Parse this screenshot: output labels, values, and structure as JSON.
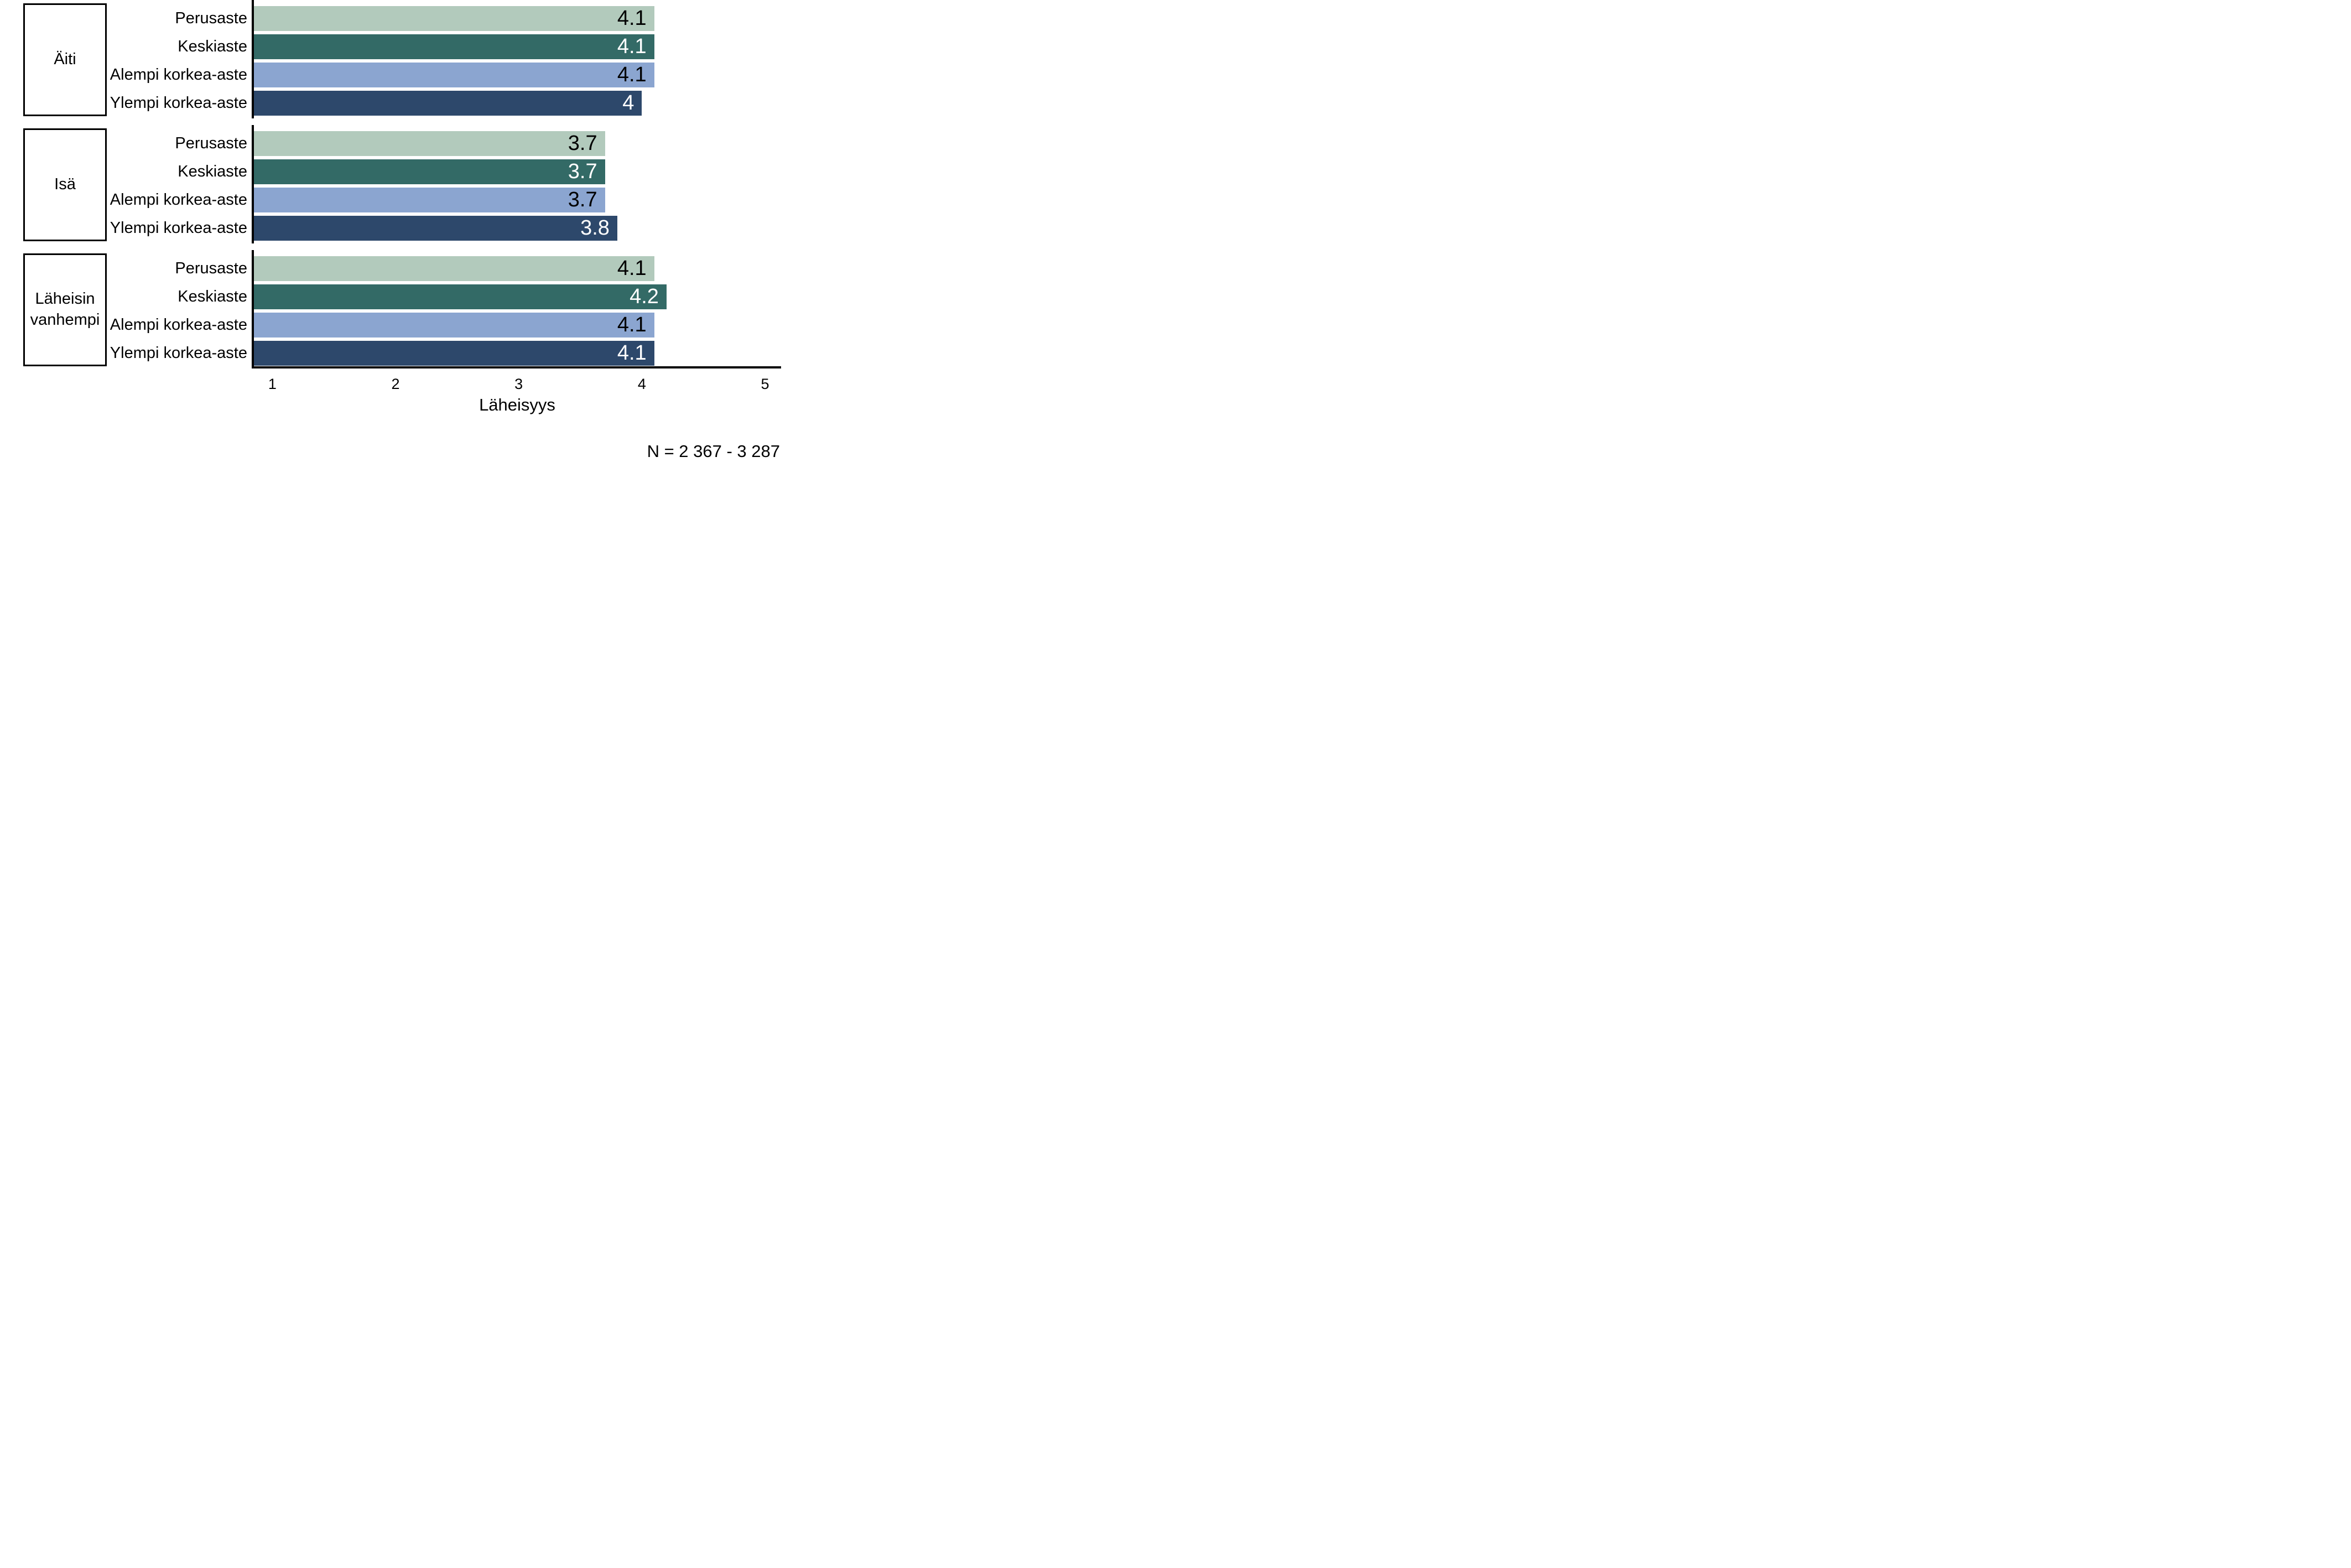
{
  "chart_data": {
    "type": "bar",
    "orientation": "horizontal",
    "xlabel": "Läheisyys",
    "x_ticks": [
      1,
      2,
      3,
      4,
      5
    ],
    "x_tick_labels": [
      "1",
      "2",
      "3",
      "4",
      "5"
    ],
    "xlim_display": [
      0.85,
      5.13
    ],
    "grid": false,
    "legend": "none",
    "bar_categories": [
      "Perusaste",
      "Keskiaste",
      "Alempi korkea-aste",
      "Ylempi korkea-aste"
    ],
    "bar_colors": [
      "#b2cabc",
      "#336a66",
      "#8ba5d0",
      "#2d486b"
    ],
    "value_text_colors": [
      "#000000",
      "#ffffff",
      "#000000",
      "#ffffff"
    ],
    "groups": [
      {
        "label": "Äiti",
        "values": [
          4.1,
          4.1,
          4.1,
          4.0
        ],
        "display_labels": [
          "4.1",
          "4.1",
          "4.1",
          "4"
        ]
      },
      {
        "label": "Isä",
        "values": [
          3.7,
          3.7,
          3.7,
          3.8
        ],
        "display_labels": [
          "3.7",
          "3.7",
          "3.7",
          "3.8"
        ]
      },
      {
        "label": "Läheisin vanhempi",
        "values": [
          4.1,
          4.2,
          4.1,
          4.1
        ],
        "display_labels": [
          "4.1",
          "4.2",
          "4.1",
          "4.1"
        ]
      }
    ],
    "annotation": "N = 2 367 - 3 287"
  }
}
